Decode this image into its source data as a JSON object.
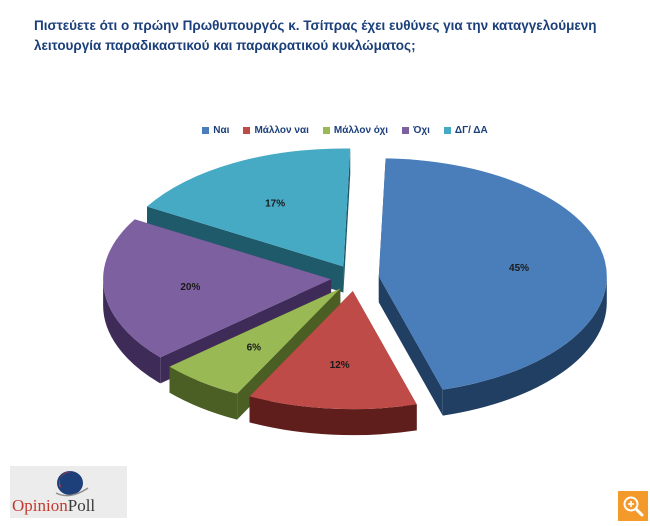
{
  "title": "Πιστεύετε ότι ο πρώην Πρωθυπουργός κ. Τσίπρας  έχει ευθύνες για την καταγγελούμενη\nλειτουργία παραδικαστικού και παρακρατικού κυκλώματος;",
  "logo": {
    "part1": "Opinion",
    "part2": "Poll"
  },
  "zoom_icon": "zoom-in-icon",
  "chart_data": {
    "type": "pie",
    "style": "3d-exploded",
    "title": "Πιστεύετε ότι ο πρώην Πρωθυπουργός κ. Τσίπρας  έχει ευθύνες για την καταγγελούμενη λειτουργία παραδικαστικού και παρακρατικού κυκλώματος;",
    "legend_position": "top",
    "categories": [
      "Ναι",
      "Μάλλον ναι",
      "Μάλλον όχι",
      "Όχι",
      "ΔΓ/ ΔΑ"
    ],
    "values": [
      45,
      12,
      6,
      20,
      17
    ],
    "labels": [
      "45%",
      "12%",
      "6%",
      "20%",
      "17%"
    ],
    "colors": [
      "#4a7ebb",
      "#be4b48",
      "#98b954",
      "#7d60a0",
      "#46aac5"
    ],
    "side_colors": [
      "#213e63",
      "#5f1d1b",
      "#4b5f25",
      "#3f2b57",
      "#1f5a6b"
    ]
  }
}
